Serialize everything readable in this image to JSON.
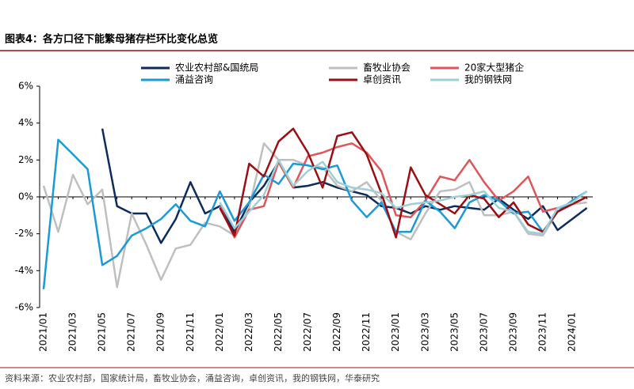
{
  "chart_data": {
    "type": "line",
    "title": "图表4：各方口径下能繁母猪存栏环比变化总览",
    "source": "资料来源：农业农村部，国家统计局，畜牧业协会，涌益咨询，卓创资讯，我的钢铁网，华泰研究",
    "categories": [
      "2021/01",
      null,
      "2021/03",
      null,
      "2021/05",
      null,
      "2021/07",
      null,
      "2021/09",
      null,
      "2021/11",
      null,
      "2022/01",
      null,
      "2022/03",
      null,
      "2022/05",
      null,
      "2022/07",
      null,
      "2022/09",
      null,
      "2022/11",
      null,
      "2023/01",
      null,
      "2023/03",
      null,
      "2023/05",
      null,
      "2023/07",
      null,
      "2023/09",
      null,
      "2023/11",
      null,
      "2024/01",
      null
    ],
    "ylim": [
      -6,
      6
    ],
    "yticks": [
      {
        "value": -6,
        "label": "-6%"
      },
      {
        "value": -4,
        "label": "-4%"
      },
      {
        "value": -2,
        "label": "-2%"
      },
      {
        "value": 0,
        "label": "0%"
      },
      {
        "value": 2,
        "label": "2%"
      },
      {
        "value": 4,
        "label": "4%"
      },
      {
        "value": 6,
        "label": "6%"
      }
    ],
    "series": [
      {
        "name": "农业农村部&国统局",
        "color": "#0d2c5c",
        "values": [
          null,
          null,
          null,
          null,
          3.7,
          -0.5,
          -0.9,
          -0.9,
          -2.5,
          -1.2,
          0.8,
          -0.9,
          -0.5,
          -1.9,
          -0.3,
          0.6,
          1.9,
          0.5,
          0.6,
          0.8,
          0.5,
          0.3,
          0.1,
          -0.5,
          -0.6,
          -0.9,
          -0.5,
          -0.7,
          -0.5,
          -0.6,
          -0.7,
          -0.1,
          -0.7,
          -1.2,
          -0.5,
          -1.8,
          -1.2,
          -0.6
        ]
      },
      {
        "name": "畜牧业协会",
        "color": "#bfbfbf",
        "values": [
          0.6,
          -1.9,
          1.2,
          -0.4,
          0.4,
          -4.9,
          -0.9,
          -2.6,
          -4.5,
          -2.8,
          -2.6,
          -1.4,
          -1.6,
          -2.1,
          -0.6,
          2.9,
          2.0,
          2.0,
          1.7,
          1.6,
          0.6,
          0.3,
          0.8,
          -0.2,
          -1.9,
          -2.3,
          -0.9,
          0.3,
          0.4,
          0.8,
          -1.0,
          -1.0,
          -0.8,
          -2.0,
          -2.1,
          -0.8,
          -0.4,
          -0.3
        ]
      },
      {
        "name": "20家大型猪企",
        "color": "#e0555a",
        "values": [
          null,
          null,
          null,
          null,
          null,
          null,
          null,
          null,
          null,
          null,
          null,
          null,
          -0.5,
          -2.2,
          -0.7,
          -0.5,
          1.9,
          0.5,
          2.2,
          2.4,
          2.7,
          2.9,
          2.4,
          1.4,
          -1.0,
          -1.1,
          -0.2,
          1.1,
          0.9,
          2.0,
          0.8,
          -0.2,
          0.3,
          1.1,
          -0.8,
          -0.6,
          -0.4,
          0.0
        ]
      },
      {
        "name": "涌益咨询",
        "color": "#1a9ad6",
        "values": [
          -5.0,
          3.1,
          2.3,
          1.5,
          -3.7,
          -3.2,
          -2.1,
          -1.7,
          -1.2,
          -0.4,
          -1.3,
          -1.6,
          0.3,
          -1.3,
          -0.3,
          1.2,
          0.7,
          1.8,
          1.7,
          1.5,
          1.7,
          -0.2,
          -1.1,
          -0.3,
          -1.9,
          -1.9,
          -0.2,
          -0.8,
          -1.7,
          -0.3,
          0.1,
          -0.2,
          -0.9,
          -0.8,
          -1.9,
          -0.8,
          -0.2,
          0.3
        ]
      },
      {
        "name": "卓创资讯",
        "color": "#9b0e13",
        "values": [
          null,
          null,
          null,
          null,
          null,
          null,
          null,
          null,
          null,
          null,
          null,
          null,
          -0.6,
          -2.1,
          1.8,
          1.1,
          3.0,
          3.7,
          2.4,
          0.5,
          3.3,
          3.5,
          2.3,
          0.2,
          -2.2,
          1.6,
          0.1,
          -0.4,
          -0.9,
          0.1,
          -0.1,
          -1.1,
          -0.3,
          -1.5,
          -1.9,
          -0.8,
          -0.4,
          0.0
        ]
      },
      {
        "name": "我的钢铁网",
        "color": "#9dcfd6",
        "values": [
          null,
          null,
          null,
          null,
          null,
          null,
          null,
          null,
          null,
          null,
          null,
          null,
          -0.3,
          -1.7,
          -0.8,
          0.1,
          2.0,
          0.6,
          1.4,
          1.9,
          0.8,
          0.5,
          0.4,
          0.2,
          -0.6,
          -0.4,
          -0.3,
          -0.2,
          0.0,
          0.1,
          0.3,
          -0.6,
          -0.8,
          -1.9,
          -2.0,
          -0.6,
          -0.3,
          0.3
        ]
      }
    ]
  }
}
